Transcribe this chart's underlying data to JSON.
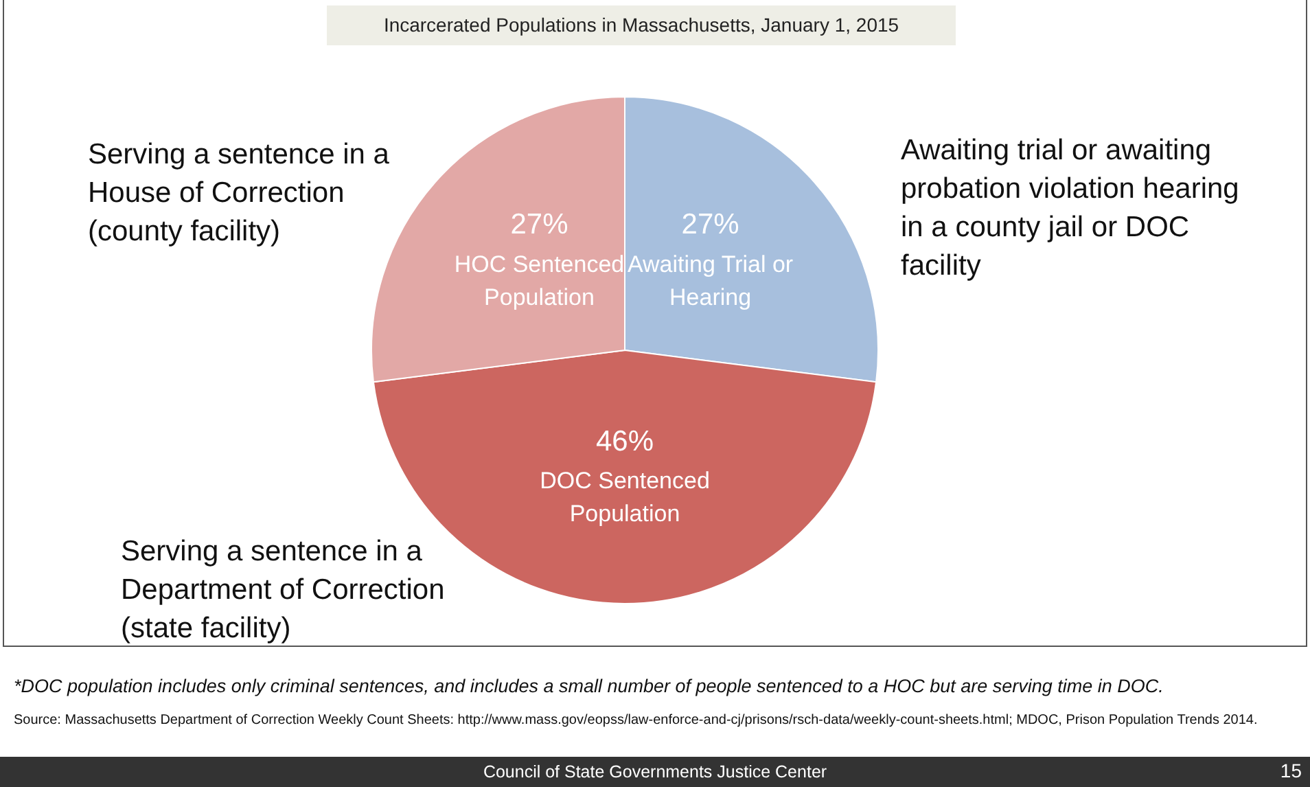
{
  "chart_data": {
    "type": "pie",
    "title": "Incarcerated Populations in Massachusetts, January 1, 2015",
    "categories": [
      "Awaiting Trial or Hearing",
      "DOC Sentenced Population",
      "HOC Sentenced Population"
    ],
    "values": [
      27,
      46,
      27
    ],
    "colors": [
      "#a7bfdd",
      "#cc6660",
      "#e2a8a6"
    ],
    "value_labels": [
      "27%",
      "46%",
      "27%"
    ],
    "legend": false,
    "annotations": [
      "Awaiting trial or awaiting probation violation hearing in a county jail or DOC facility",
      "Serving a sentence in a Department of Correction (state facility)",
      "Serving a sentence in a House of Correction (county facility)",
      "*DOC population includes only criminal sentences, and includes a small number of people sentenced to a HOC but are serving time in DOC.",
      "Source: Massachusetts Department of Correction Weekly Count Sheets: http://www.mass.gov/eopss/law-enforce-and-cj/prisons/rsch-data/weekly-count-sheets.html; MDOC, Prison Population Trends 2014.",
      "Council of State Governments Justice Center",
      "15"
    ]
  }
}
